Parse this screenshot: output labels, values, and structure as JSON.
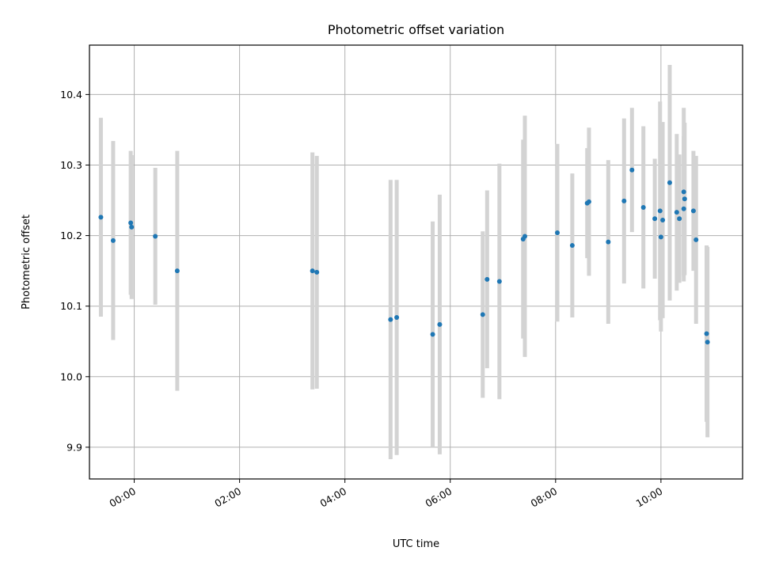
{
  "chart_data": {
    "type": "scatter",
    "title": "Photometric offset variation",
    "xlabel": "UTC time",
    "ylabel": "Photometric offset",
    "xlim": [
      "23:09",
      "11:33"
    ],
    "ylim": [
      9.855,
      10.47
    ],
    "grid": true,
    "x_ticks": [
      "00:00",
      "02:00",
      "04:00",
      "06:00",
      "08:00",
      "10:00"
    ],
    "y_ticks": [
      "9.9",
      "10.0",
      "10.1",
      "10.2",
      "10.3",
      "10.4"
    ],
    "series": [
      {
        "marker_color": "#1f77b4",
        "errorbar_color": "#d3d3d3",
        "points": [
          {
            "t": "23:22",
            "y": 10.226,
            "err": 0.141
          },
          {
            "t": "23:36",
            "y": 10.193,
            "err": 0.141
          },
          {
            "t": "23:56",
            "y": 10.218,
            "err": 0.102
          },
          {
            "t": "23:57",
            "y": 10.212,
            "err": 0.102
          },
          {
            "t": "00:24",
            "y": 10.199,
            "err": 0.097
          },
          {
            "t": "00:49",
            "y": 10.15,
            "err": 0.17
          },
          {
            "t": "03:23",
            "y": 10.15,
            "err": 0.168
          },
          {
            "t": "03:28",
            "y": 10.148,
            "err": 0.165
          },
          {
            "t": "04:52",
            "y": 10.081,
            "err": 0.198
          },
          {
            "t": "04:59",
            "y": 10.084,
            "err": 0.195
          },
          {
            "t": "05:40",
            "y": 10.06,
            "err": 0.16
          },
          {
            "t": "05:48",
            "y": 10.074,
            "err": 0.184
          },
          {
            "t": "06:37",
            "y": 10.088,
            "err": 0.118
          },
          {
            "t": "06:42",
            "y": 10.138,
            "err": 0.126
          },
          {
            "t": "06:56",
            "y": 10.135,
            "err": 0.167
          },
          {
            "t": "07:23",
            "y": 10.195,
            "err": 0.141
          },
          {
            "t": "07:25",
            "y": 10.199,
            "err": 0.171
          },
          {
            "t": "08:02",
            "y": 10.204,
            "err": 0.126
          },
          {
            "t": "08:19",
            "y": 10.186,
            "err": 0.102
          },
          {
            "t": "08:36",
            "y": 10.246,
            "err": 0.078
          },
          {
            "t": "08:38",
            "y": 10.248,
            "err": 0.105
          },
          {
            "t": "09:00",
            "y": 10.191,
            "err": 0.116
          },
          {
            "t": "09:18",
            "y": 10.249,
            "err": 0.117
          },
          {
            "t": "09:27",
            "y": 10.293,
            "err": 0.088
          },
          {
            "t": "09:40",
            "y": 10.24,
            "err": 0.115
          },
          {
            "t": "09:53",
            "y": 10.224,
            "err": 0.085
          },
          {
            "t": "09:59",
            "y": 10.235,
            "err": 0.155
          },
          {
            "t": "10:00",
            "y": 10.198,
            "err": 0.134
          },
          {
            "t": "10:02",
            "y": 10.222,
            "err": 0.139
          },
          {
            "t": "10:10",
            "y": 10.275,
            "err": 0.167
          },
          {
            "t": "10:18",
            "y": 10.233,
            "err": 0.111
          },
          {
            "t": "10:21",
            "y": 10.224,
            "err": 0.091
          },
          {
            "t": "10:26",
            "y": 10.238,
            "err": 0.103
          },
          {
            "t": "10:26",
            "y": 10.262,
            "err": 0.119
          },
          {
            "t": "10:27",
            "y": 10.252,
            "err": 0.108
          },
          {
            "t": "10:37",
            "y": 10.235,
            "err": 0.085
          },
          {
            "t": "10:40",
            "y": 10.194,
            "err": 0.119
          },
          {
            "t": "10:52",
            "y": 10.061,
            "err": 0.125
          },
          {
            "t": "10:53",
            "y": 10.049,
            "err": 0.135
          }
        ]
      }
    ]
  }
}
